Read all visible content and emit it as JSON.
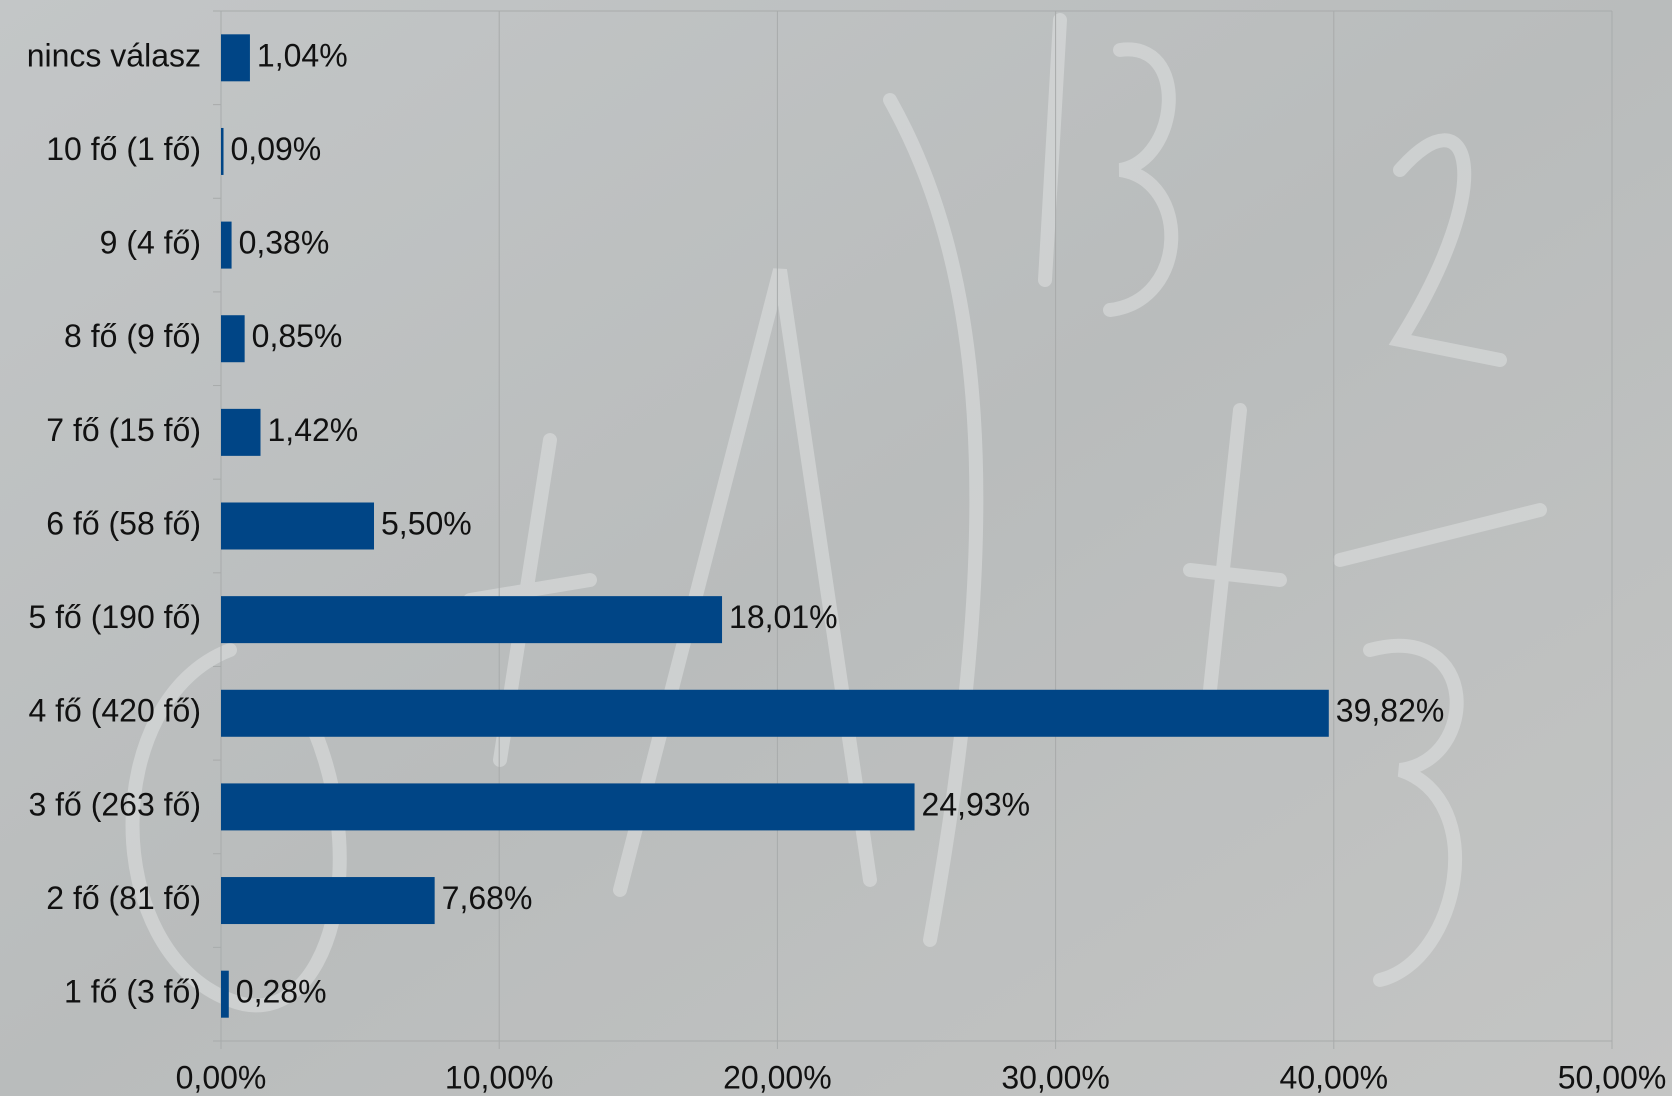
{
  "chart_data": {
    "type": "bar",
    "orientation": "horizontal",
    "categories": [
      "nincs válasz",
      "10 fő (1 fő)",
      "9 (4 fő)",
      "8 fő (9 fő)",
      "7 fő (15 fő)",
      "6 fő (58 fő)",
      "5 fő (190 fő)",
      "4 fő (420 fő)",
      "3 fő (263 fő)",
      "2 fő (81 fő)",
      "1 fő (3 fő)"
    ],
    "values": [
      1.04,
      0.09,
      0.38,
      0.85,
      1.42,
      5.5,
      18.01,
      39.82,
      24.93,
      7.68,
      0.28
    ],
    "value_labels": [
      "1,04%",
      "0,09%",
      "0,38%",
      "0,85%",
      "1,42%",
      "5,50%",
      "18,01%",
      "39,82%",
      "24,93%",
      "7,68%",
      "0,28%"
    ],
    "color": "#004586",
    "xlim": [
      0,
      50
    ],
    "xticks": [
      {
        "value": 0,
        "label": "0,00%"
      },
      {
        "value": 10,
        "label": "10,00%"
      },
      {
        "value": 20,
        "label": "20,00%"
      },
      {
        "value": 30,
        "label": "30,00%"
      },
      {
        "value": 40,
        "label": "40,00%"
      },
      {
        "value": 50,
        "label": "50,00%"
      }
    ],
    "grid": true
  }
}
